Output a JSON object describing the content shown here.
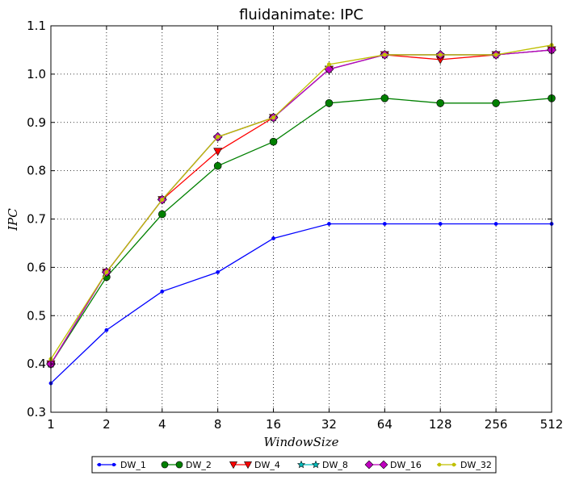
{
  "chart_data": {
    "type": "line",
    "title": "fluidanimate: IPC",
    "xlabel": "WindowSize",
    "ylabel": "IPC",
    "categories": [
      "1",
      "2",
      "4",
      "8",
      "16",
      "32",
      "64",
      "128",
      "256",
      "512"
    ],
    "ylim": [
      0.3,
      1.1
    ],
    "yticks": [
      "0.3",
      "0.4",
      "0.5",
      "0.6",
      "0.7",
      "0.8",
      "0.9",
      "1.0",
      "1.1"
    ],
    "grid": true,
    "legend_position": "bottom",
    "series": [
      {
        "name": "DW_1",
        "color": "#0000ff",
        "marker": "point",
        "values": [
          0.36,
          0.47,
          0.55,
          0.59,
          0.66,
          0.69,
          0.69,
          0.69,
          0.69,
          0.69
        ]
      },
      {
        "name": "DW_2",
        "color": "#008000",
        "marker": "circle",
        "values": [
          0.4,
          0.58,
          0.71,
          0.81,
          0.86,
          0.94,
          0.95,
          0.94,
          0.94,
          0.95
        ]
      },
      {
        "name": "DW_4",
        "color": "#ff0000",
        "marker": "triangle-down",
        "values": [
          0.4,
          0.59,
          0.74,
          0.84,
          0.91,
          1.01,
          1.04,
          1.03,
          1.04,
          1.05
        ]
      },
      {
        "name": "DW_8",
        "color": "#00bfbf",
        "marker": "star",
        "values": [
          0.4,
          0.59,
          0.74,
          0.87,
          0.91,
          1.01,
          1.04,
          1.04,
          1.04,
          1.05
        ]
      },
      {
        "name": "DW_16",
        "color": "#bf00bf",
        "marker": "diamond",
        "values": [
          0.4,
          0.59,
          0.74,
          0.87,
          0.91,
          1.01,
          1.04,
          1.04,
          1.04,
          1.05
        ]
      },
      {
        "name": "DW_32",
        "color": "#bfbf00",
        "marker": "hexagon",
        "values": [
          0.41,
          0.59,
          0.74,
          0.87,
          0.91,
          1.02,
          1.04,
          1.04,
          1.04,
          1.06
        ]
      }
    ]
  }
}
